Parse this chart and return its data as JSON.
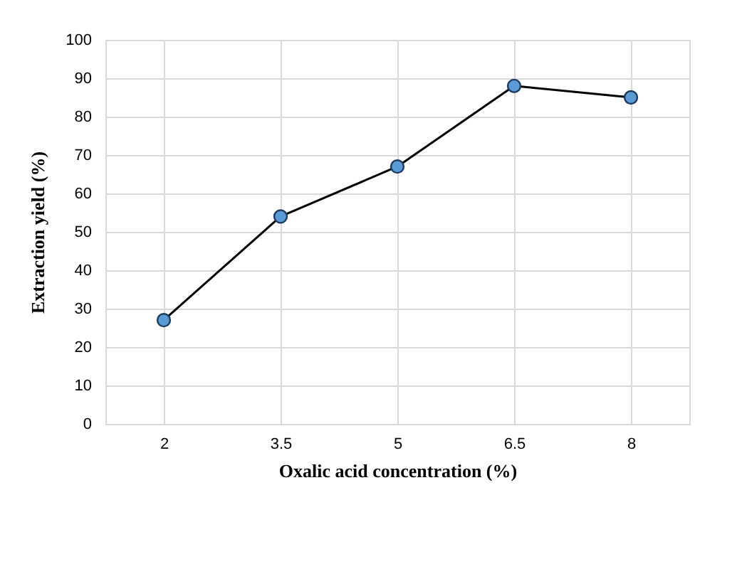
{
  "chart_data": {
    "type": "line",
    "xlabel": "Oxalic acid concentration (%)",
    "ylabel": "Extraction yield (%)",
    "categories": [
      "2",
      "3.5",
      "5",
      "6.5",
      "8"
    ],
    "series": [
      {
        "color": "#000000",
        "values": [
          27,
          54,
          67,
          88,
          85
        ]
      }
    ],
    "ylim": [
      0,
      100
    ],
    "yticks": [
      0,
      10,
      20,
      30,
      40,
      50,
      60,
      70,
      80,
      90,
      100
    ],
    "grid": true,
    "marker": "circle",
    "line_style": "solid"
  }
}
